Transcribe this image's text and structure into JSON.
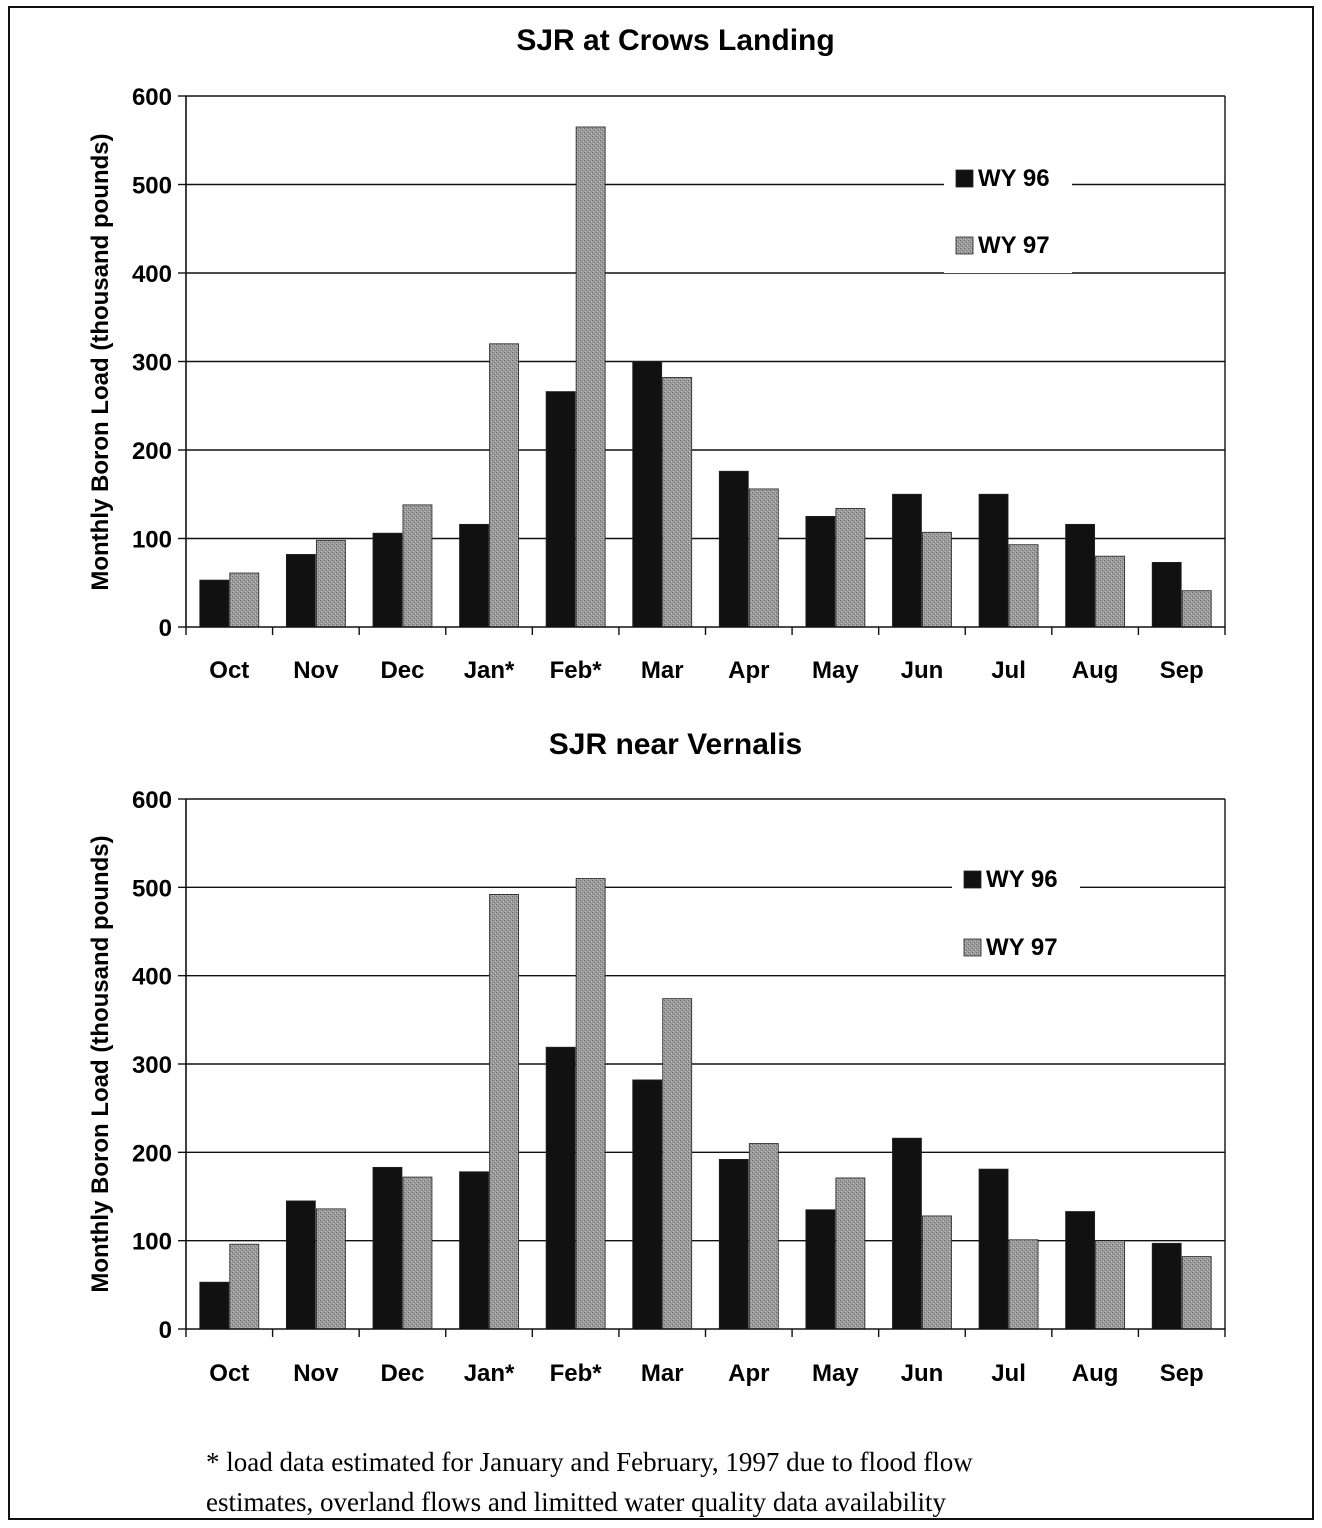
{
  "chart_data": [
    {
      "type": "bar",
      "title": "SJR at Crows Landing",
      "ylabel": "Monthly Boron Load (thousand pounds)",
      "xlabel": "",
      "ylim": [
        0,
        600
      ],
      "yticks": [
        0,
        100,
        200,
        300,
        400,
        500,
        600
      ],
      "grid": true,
      "legend": "upper right",
      "categories": [
        "Oct",
        "Nov",
        "Dec",
        "Jan*",
        "Feb*",
        "Mar",
        "Apr",
        "May",
        "Jun",
        "Jul",
        "Aug",
        "Sep"
      ],
      "series": [
        {
          "name": "WY 96",
          "color": "#111111",
          "values": [
            53,
            82,
            106,
            116,
            266,
            300,
            176,
            125,
            150,
            150,
            116,
            73
          ]
        },
        {
          "name": "WY 97",
          "color": "#8f8f8f",
          "values": [
            61,
            98,
            138,
            320,
            565,
            282,
            156,
            134,
            107,
            93,
            80,
            41
          ]
        }
      ]
    },
    {
      "type": "bar",
      "title": "SJR near Vernalis",
      "ylabel": "Monthly Boron Load (thousand pounds)",
      "xlabel": "",
      "ylim": [
        0,
        600
      ],
      "yticks": [
        0,
        100,
        200,
        300,
        400,
        500,
        600
      ],
      "grid": true,
      "legend": "upper right",
      "categories": [
        "Oct",
        "Nov",
        "Dec",
        "Jan*",
        "Feb*",
        "Mar",
        "Apr",
        "May",
        "Jun",
        "Jul",
        "Aug",
        "Sep"
      ],
      "series": [
        {
          "name": "WY 96",
          "color": "#111111",
          "values": [
            53,
            145,
            183,
            178,
            319,
            282,
            192,
            135,
            216,
            181,
            133,
            97
          ]
        },
        {
          "name": "WY 97",
          "color": "#8f8f8f",
          "values": [
            96,
            136,
            172,
            492,
            510,
            374,
            210,
            171,
            128,
            101,
            100,
            82
          ]
        }
      ]
    }
  ],
  "footnote": {
    "line1": "* load data estimated for January and February, 1997 due to flood flow",
    "line2": "estimates, overland flows and limitted water quality data availability"
  }
}
